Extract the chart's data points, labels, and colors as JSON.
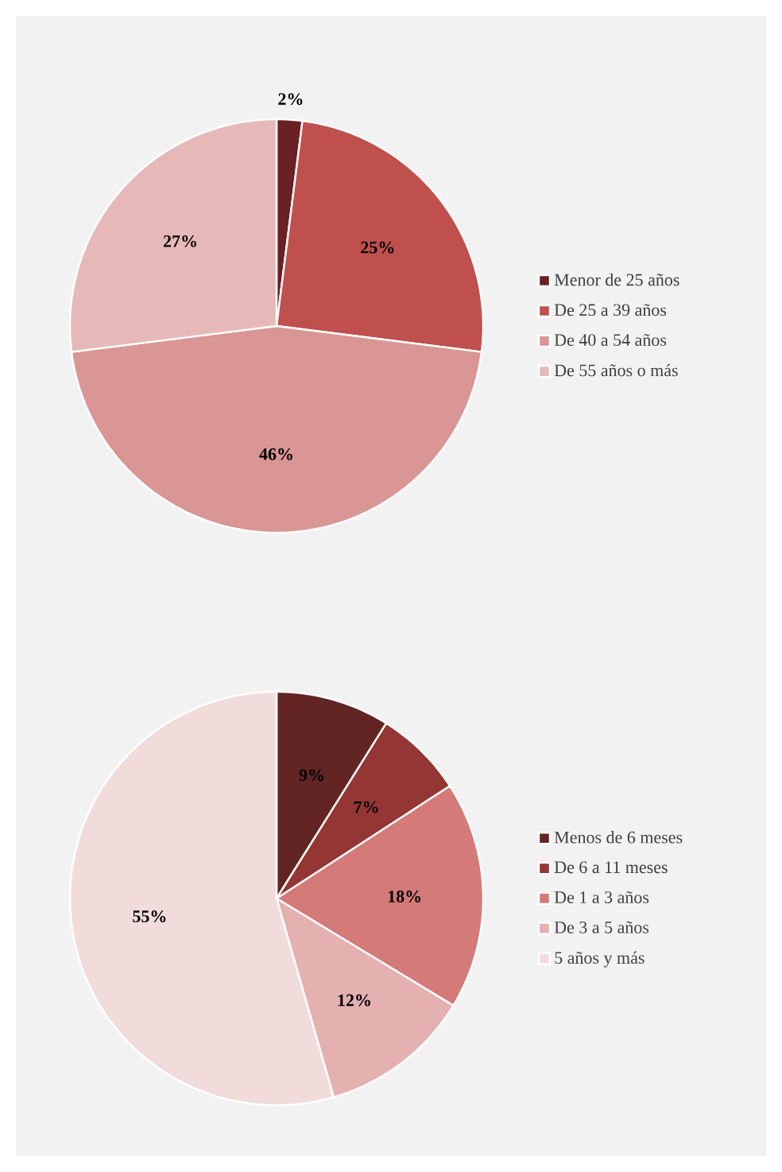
{
  "chart_data": [
    {
      "type": "pie",
      "categories": [
        "Menor de 25 años",
        "De 25 a 39 años",
        "De 40 a 54 años",
        "De 55 años o más"
      ],
      "values": [
        2,
        25,
        46,
        27
      ],
      "colors": [
        "#6b2023",
        "#c0504d",
        "#d99694",
        "#e6b9b8"
      ],
      "value_labels": [
        "2%",
        "25%",
        "46%",
        "27%"
      ],
      "legend": "right"
    },
    {
      "type": "pie",
      "categories": [
        "Menos de 6 meses",
        "De 6 a 11 meses",
        "De 1 a 3 años",
        "De 3 a 5 años",
        "5 años y más"
      ],
      "values": [
        9,
        7,
        18,
        12,
        55
      ],
      "colors": [
        "#632523",
        "#943634",
        "#d47a78",
        "#e5b0b0",
        "#f2dcdb"
      ],
      "value_labels": [
        "9%",
        "7%",
        "18%",
        "12%",
        "55%"
      ],
      "legend": "right"
    }
  ]
}
